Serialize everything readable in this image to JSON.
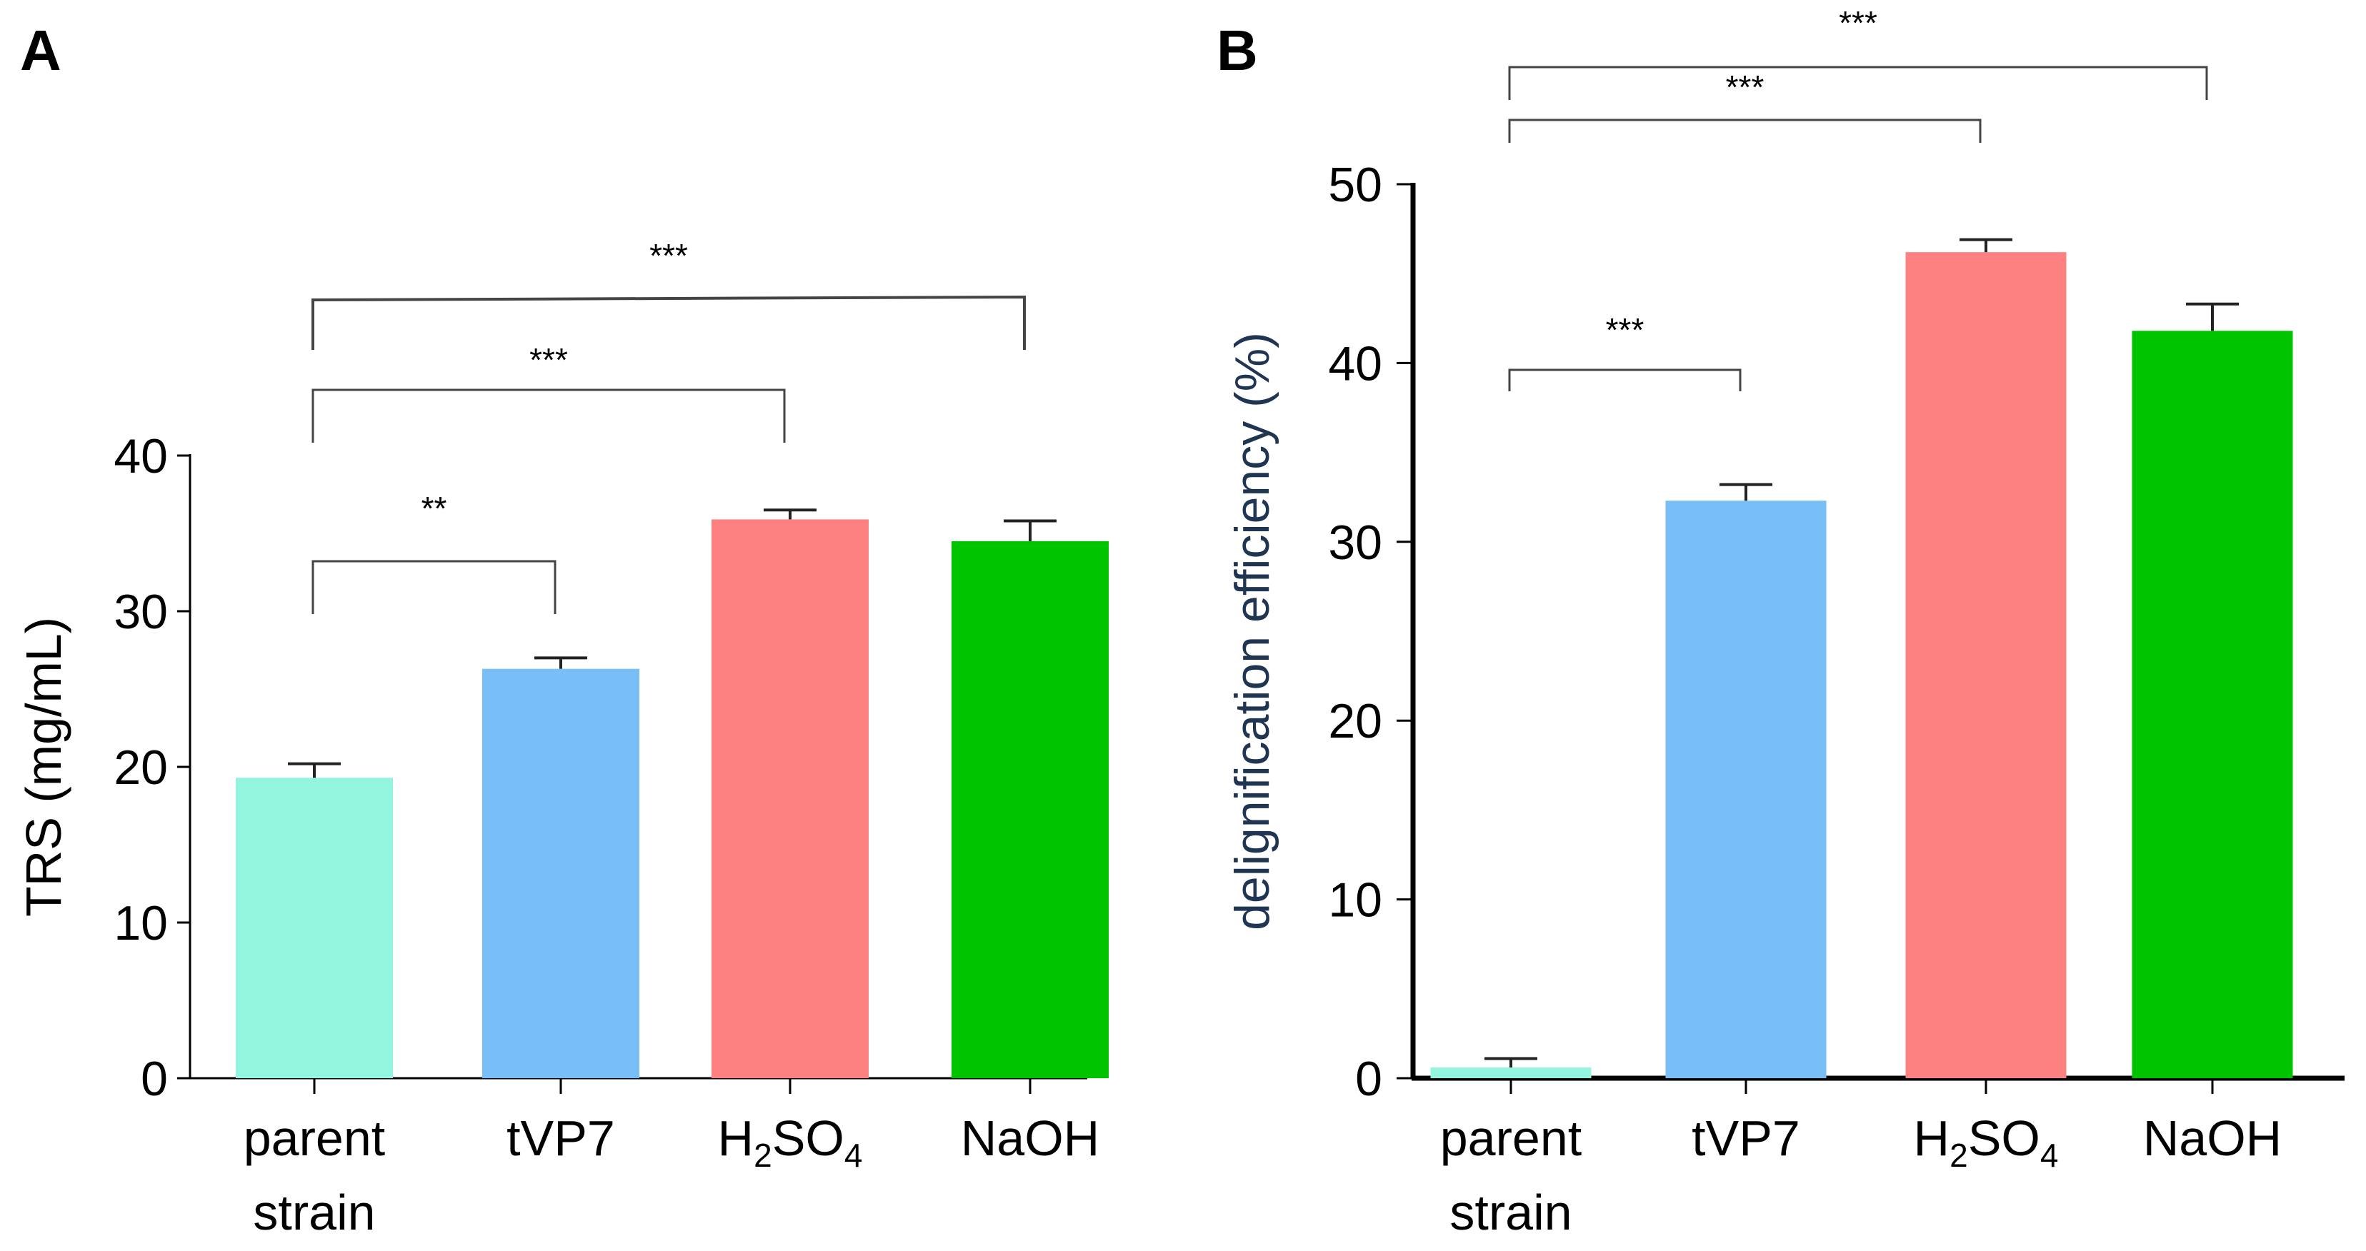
{
  "chart_data": [
    {
      "panel": "A",
      "type": "bar",
      "ylabel": "TRS (mg/mL)",
      "ylim": [
        0,
        40
      ],
      "yticks": [
        0,
        10,
        20,
        30,
        40
      ],
      "categories": [
        {
          "line1": "parent",
          "line2": "strain"
        },
        {
          "line1": "tVP7"
        },
        {
          "base": "H",
          "sub1": "2",
          "mid": "SO",
          "sub2": "4"
        },
        {
          "line1": "NaOH"
        }
      ],
      "values": [
        19.3,
        26.3,
        35.9,
        34.5
      ],
      "errors": [
        0.9,
        0.7,
        0.6,
        1.3
      ],
      "colors": [
        "#94f5de",
        "#78bff8",
        "#fd8180",
        "#00c300"
      ],
      "significance": [
        {
          "from": 0,
          "to": 1,
          "label": "**"
        },
        {
          "from": 0,
          "to": 2,
          "label": "***"
        },
        {
          "from": 0,
          "to": 3,
          "label": "***"
        }
      ]
    },
    {
      "panel": "B",
      "type": "bar",
      "ylabel": "delignification efficiency (%)",
      "ylim": [
        0,
        50
      ],
      "yticks": [
        0,
        10,
        20,
        30,
        40,
        50
      ],
      "categories": [
        {
          "line1": "parent",
          "line2": "strain"
        },
        {
          "line1": "tVP7"
        },
        {
          "base": "H",
          "sub1": "2",
          "mid": "SO",
          "sub2": "4"
        },
        {
          "line1": "NaOH"
        }
      ],
      "values": [
        0.6,
        32.3,
        46.2,
        41.8
      ],
      "errors": [
        0.5,
        0.9,
        0.7,
        1.5
      ],
      "colors": [
        "#94f5de",
        "#78bff8",
        "#fd8180",
        "#00c300"
      ],
      "significance": [
        {
          "from": 0,
          "to": 1,
          "label": "***"
        },
        {
          "from": 0,
          "to": 2,
          "label": "***"
        },
        {
          "from": 0,
          "to": 3,
          "label": "***"
        }
      ]
    }
  ]
}
